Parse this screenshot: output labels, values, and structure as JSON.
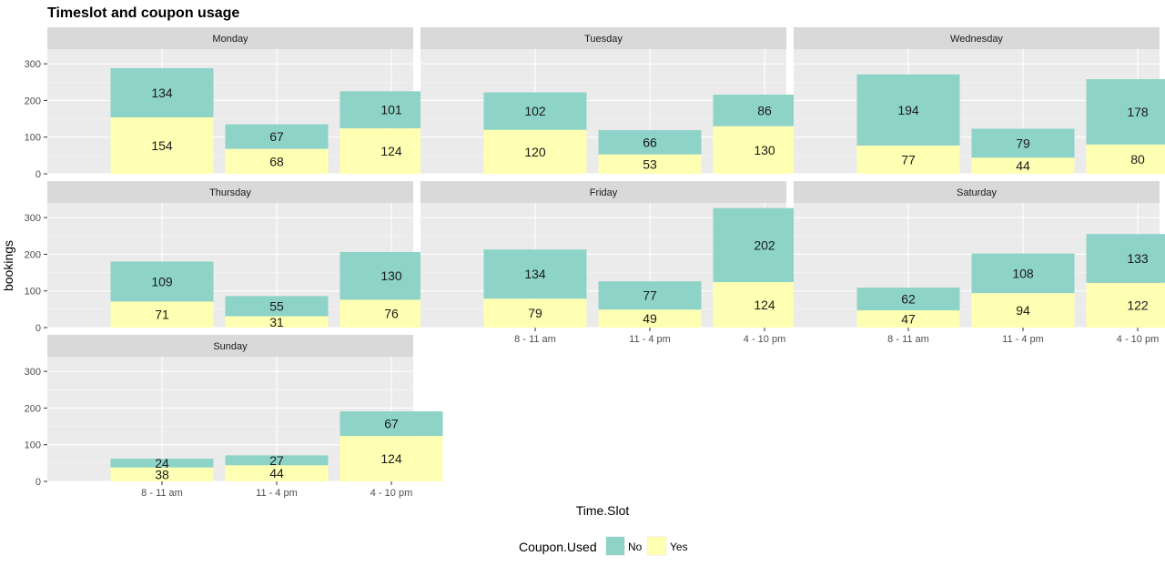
{
  "chart_data": {
    "type": "bar",
    "stacked": true,
    "title": "Timeslot and coupon usage",
    "xlabel": "Time.Slot",
    "ylabel": "bookings",
    "ylim": [
      0,
      340
    ],
    "yticks": [
      0,
      100,
      200,
      300
    ],
    "grid": true,
    "categories": [
      "8 - 11 am",
      "11 - 4 pm",
      "4 - 10 pm"
    ],
    "legend": {
      "title": "Coupon.Used",
      "position": "bottom",
      "entries": [
        {
          "label": "No",
          "color": "#8dd3c7"
        },
        {
          "label": "Yes",
          "color": "#ffffb3"
        }
      ]
    },
    "panels": [
      {
        "facet": "Monday",
        "series": [
          {
            "name": "Yes",
            "values": [
              154,
              68,
              124
            ]
          },
          {
            "name": "No",
            "values": [
              134,
              67,
              101
            ]
          }
        ]
      },
      {
        "facet": "Tuesday",
        "series": [
          {
            "name": "Yes",
            "values": [
              120,
              53,
              130
            ]
          },
          {
            "name": "No",
            "values": [
              102,
              66,
              86
            ]
          }
        ]
      },
      {
        "facet": "Wednesday",
        "series": [
          {
            "name": "Yes",
            "values": [
              77,
              44,
              80
            ]
          },
          {
            "name": "No",
            "values": [
              194,
              79,
              178
            ]
          }
        ]
      },
      {
        "facet": "Thursday",
        "series": [
          {
            "name": "Yes",
            "values": [
              71,
              31,
              76
            ]
          },
          {
            "name": "No",
            "values": [
              109,
              55,
              130
            ]
          }
        ]
      },
      {
        "facet": "Friday",
        "series": [
          {
            "name": "Yes",
            "values": [
              79,
              49,
              124
            ]
          },
          {
            "name": "No",
            "values": [
              134,
              77,
              202
            ]
          }
        ]
      },
      {
        "facet": "Saturday",
        "series": [
          {
            "name": "Yes",
            "values": [
              47,
              94,
              122
            ]
          },
          {
            "name": "No",
            "values": [
              62,
              108,
              133
            ]
          }
        ]
      },
      {
        "facet": "Sunday",
        "series": [
          {
            "name": "Yes",
            "values": [
              38,
              44,
              124
            ]
          },
          {
            "name": "No",
            "values": [
              24,
              27,
              67
            ]
          }
        ]
      }
    ]
  }
}
